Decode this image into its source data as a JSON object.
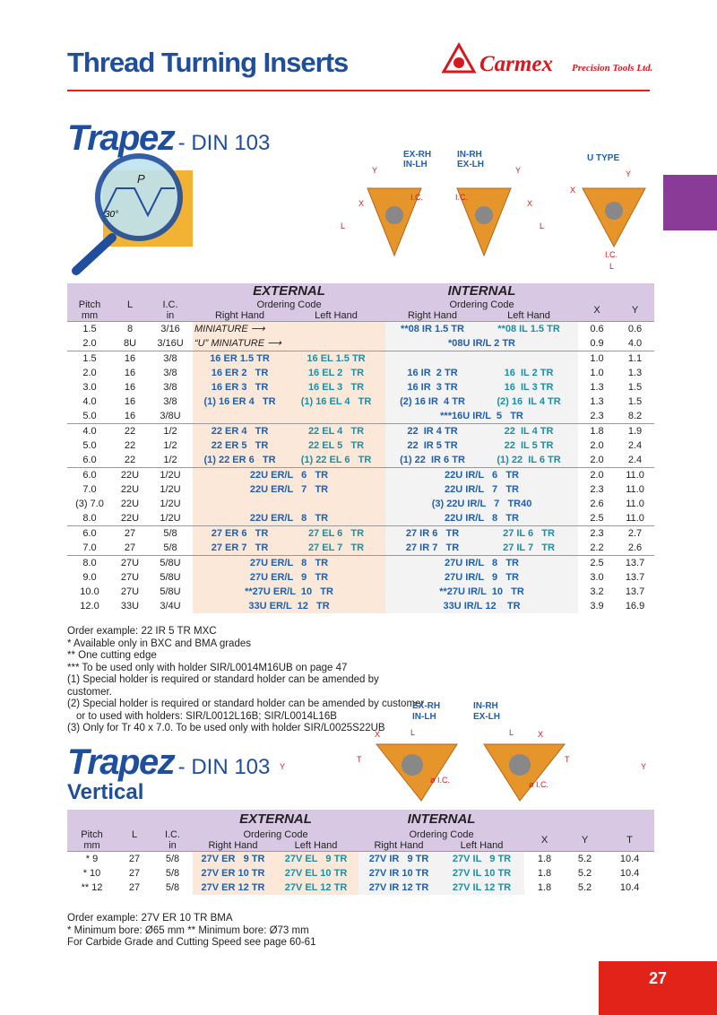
{
  "header": {
    "title": "Thread Turning Inserts",
    "brand": "Carmex",
    "brand_sub": "Precision Tools Ltd."
  },
  "section1": {
    "title": "Trapez",
    "subtitle": "- DIN 103"
  },
  "diagram1": {
    "ex_rh": "EX-RH",
    "in_lh": "IN-LH",
    "in_rh": "IN-RH",
    "ex_lh": "EX-LH",
    "u_type": "U TYPE",
    "x": "X",
    "y": "Y",
    "l": "L",
    "ic": "I.C.",
    "p": "P",
    "angle": "30°"
  },
  "table1": {
    "external": "EXTERNAL",
    "internal": "INTERNAL",
    "ordering_code": "Ordering Code",
    "right_hand": "Right Hand",
    "left_hand": "Left Hand",
    "pitch": "Pitch",
    "mm": "mm",
    "l": "L",
    "ic": "I.C.",
    "in": "in",
    "x": "X",
    "y": "Y",
    "groups": [
      {
        "rows": [
          {
            "pitch": "1.5",
            "l": "8",
            "ic": "3/16",
            "ext_label": "MINIATURE",
            "int_rh": "**08 IR 1.5 TR",
            "int_lh": "**08 IL 1.5 TR",
            "x": "0.6",
            "y": "0.6"
          },
          {
            "pitch": "2.0",
            "l": "8U",
            "ic": "3/16U",
            "ext_label": "“U” MINIATURE",
            "int": "*08U IR/L 2 TR",
            "x": "0.9",
            "y": "4.0"
          }
        ]
      },
      {
        "rows": [
          {
            "pitch": "1.5",
            "l": "16",
            "ic": "3/8",
            "ext_rh": "16 ER 1.5 TR",
            "ext_lh": "16 EL 1.5 TR",
            "x": "1.0",
            "y": "1.1"
          },
          {
            "pitch": "2.0",
            "l": "16",
            "ic": "3/8",
            "ext_rh": "16 ER 2   TR",
            "ext_lh": "16 EL 2   TR",
            "int_rh": "16 IR  2 TR",
            "int_lh": "16  IL 2 TR",
            "x": "1.0",
            "y": "1.3"
          },
          {
            "pitch": "3.0",
            "l": "16",
            "ic": "3/8",
            "ext_rh": "16 ER 3   TR",
            "ext_lh": "16 EL 3   TR",
            "int_rh": "16 IR  3 TR",
            "int_lh": "16  IL 3 TR",
            "x": "1.3",
            "y": "1.5"
          },
          {
            "pitch": "4.0",
            "l": "16",
            "ic": "3/8",
            "ext_rh": "(1) 16 ER 4   TR",
            "ext_lh": "(1) 16 EL 4   TR",
            "int_rh": "(2) 16 IR  4 TR",
            "int_lh": "(2) 16  IL 4 TR",
            "x": "1.3",
            "y": "1.5"
          },
          {
            "pitch": "5.0",
            "l": "16",
            "ic": "3/8U",
            "int": "***16U IR/L  5   TR",
            "x": "2.3",
            "y": "8.2"
          }
        ]
      },
      {
        "rows": [
          {
            "pitch": "4.0",
            "l": "22",
            "ic": "1/2",
            "ext_rh": "22 ER 4   TR",
            "ext_lh": "22 EL 4   TR",
            "int_rh": "22  IR 4 TR",
            "int_lh": "22  IL 4 TR",
            "x": "1.8",
            "y": "1.9"
          },
          {
            "pitch": "5.0",
            "l": "22",
            "ic": "1/2",
            "ext_rh": "22 ER 5   TR",
            "ext_lh": "22 EL 5   TR",
            "int_rh": "22  IR 5 TR",
            "int_lh": "22  IL 5 TR",
            "x": "2.0",
            "y": "2.4"
          },
          {
            "pitch": "6.0",
            "l": "22",
            "ic": "1/2",
            "ext_rh": "(1) 22 ER 6   TR",
            "ext_lh": "(1) 22 EL 6   TR",
            "int_rh": "(1) 22  IR 6 TR",
            "int_lh": "(1) 22  IL 6 TR",
            "x": "2.0",
            "y": "2.4"
          }
        ]
      },
      {
        "rows": [
          {
            "pitch": "6.0",
            "l": "22U",
            "ic": "1/2U",
            "ext": "22U ER/L   6   TR",
            "int": "22U IR/L   6   TR",
            "x": "2.0",
            "y": "11.0"
          },
          {
            "pitch": "7.0",
            "l": "22U",
            "ic": "1/2U",
            "ext": "22U ER/L   7   TR",
            "int": "22U IR/L   7   TR",
            "x": "2.3",
            "y": "11.0"
          },
          {
            "pitch": "(3) 7.0",
            "l": "22U",
            "ic": "1/2U",
            "int": "(3) 22U IR/L   7   TR40",
            "x": "2.6",
            "y": "11.0"
          },
          {
            "pitch": "8.0",
            "l": "22U",
            "ic": "1/2U",
            "ext": "22U ER/L   8   TR",
            "int": "22U IR/L   8   TR",
            "x": "2.5",
            "y": "11.0"
          }
        ]
      },
      {
        "rows": [
          {
            "pitch": "6.0",
            "l": "27",
            "ic": "5/8",
            "ext_rh": "27 ER 6   TR",
            "ext_lh": "27 EL 6   TR",
            "int_rh": "27 IR 6   TR",
            "int_lh": "27 IL 6   TR",
            "x": "2.3",
            "y": "2.7"
          },
          {
            "pitch": "7.0",
            "l": "27",
            "ic": "5/8",
            "ext_rh": "27 ER 7   TR",
            "ext_lh": "27 EL 7   TR",
            "int_rh": "27 IR 7   TR",
            "int_lh": "27 IL 7   TR",
            "x": "2.2",
            "y": "2.6"
          }
        ]
      },
      {
        "rows": [
          {
            "pitch": "8.0",
            "l": "27U",
            "ic": "5/8U",
            "ext": "27U ER/L   8   TR",
            "int": "27U IR/L   8   TR",
            "x": "2.5",
            "y": "13.7"
          },
          {
            "pitch": "9.0",
            "l": "27U",
            "ic": "5/8U",
            "ext": "27U ER/L   9   TR",
            "int": "27U IR/L   9   TR",
            "x": "3.0",
            "y": "13.7"
          },
          {
            "pitch": "10.0",
            "l": "27U",
            "ic": "5/8U",
            "ext": "**27U ER/L  10   TR",
            "int": "**27U IR/L  10   TR",
            "x": "3.2",
            "y": "13.7"
          },
          {
            "pitch": "12.0",
            "l": "33U",
            "ic": "3/4U",
            "ext": "33U ER/L  12   TR",
            "int": "33U IR/L 12    TR",
            "x": "3.9",
            "y": "16.9"
          }
        ]
      }
    ]
  },
  "notes1": [
    "Order example: 22 IR 5 TR MXC",
    "* Available only in BXC and BMA grades",
    "** One cutting edge",
    "***  To be used only with holder SIR/L0014M16UB on page 47",
    "(1) Special holder is required or standard holder can be amended by customer.",
    "(2) Special holder is required or standard holder can be amended by customer",
    "or to used with holders: SIR/L0012L16B; SIR/L0014L16B",
    "(3) Only for Tr 40 x 7.0.  To be used only with holder SIR/L0025S22UB"
  ],
  "section2": {
    "title": "Trapez",
    "subtitle": "- DIN 103",
    "sub2": "Vertical"
  },
  "diagram2": {
    "ex_rh": "EX-RH",
    "in_lh": "IN-LH",
    "in_rh": "IN-RH",
    "ex_lh": "EX-LH",
    "l": "L",
    "x": "X",
    "y": "Y",
    "t": "T",
    "ic": "ø I.C."
  },
  "table2": {
    "external": "EXTERNAL",
    "internal": "INTERNAL",
    "ordering_code": "Ordering Code",
    "right_hand": "Right Hand",
    "left_hand": "Left Hand",
    "pitch": "Pitch",
    "mm": "mm",
    "l": "L",
    "ic": "I.C.",
    "in": "in",
    "x": "X",
    "y": "Y",
    "t": "T",
    "rows": [
      {
        "pitch": "* 9",
        "l": "27",
        "ic": "5/8",
        "ext_rh": "27V ER   9 TR",
        "ext_lh": "27V EL   9 TR",
        "int_rh": "27V IR   9 TR",
        "int_lh": "27V IL   9 TR",
        "x": "1.8",
        "y": "5.2",
        "t": "10.4"
      },
      {
        "pitch": "* 10",
        "l": "27",
        "ic": "5/8",
        "ext_rh": "27V ER 10 TR",
        "ext_lh": "27V EL 10 TR",
        "int_rh": "27V IR 10 TR",
        "int_lh": "27V IL 10 TR",
        "x": "1.8",
        "y": "5.2",
        "t": "10.4"
      },
      {
        "pitch": "** 12",
        "l": "27",
        "ic": "5/8",
        "ext_rh": "27V ER 12 TR",
        "ext_lh": "27V EL 12 TR",
        "int_rh": "27V IR 12 TR",
        "int_lh": "27V IL 12 TR",
        "x": "1.8",
        "y": "5.2",
        "t": "10.4"
      }
    ]
  },
  "notes2": [
    "Order example: 27V ER 10 TR BMA",
    "* Minimum bore: Ø65 mm   ** Minimum bore: Ø73 mm",
    "For Carbide Grade and Cutting Speed see page 60-61"
  ],
  "page_number": "27"
}
